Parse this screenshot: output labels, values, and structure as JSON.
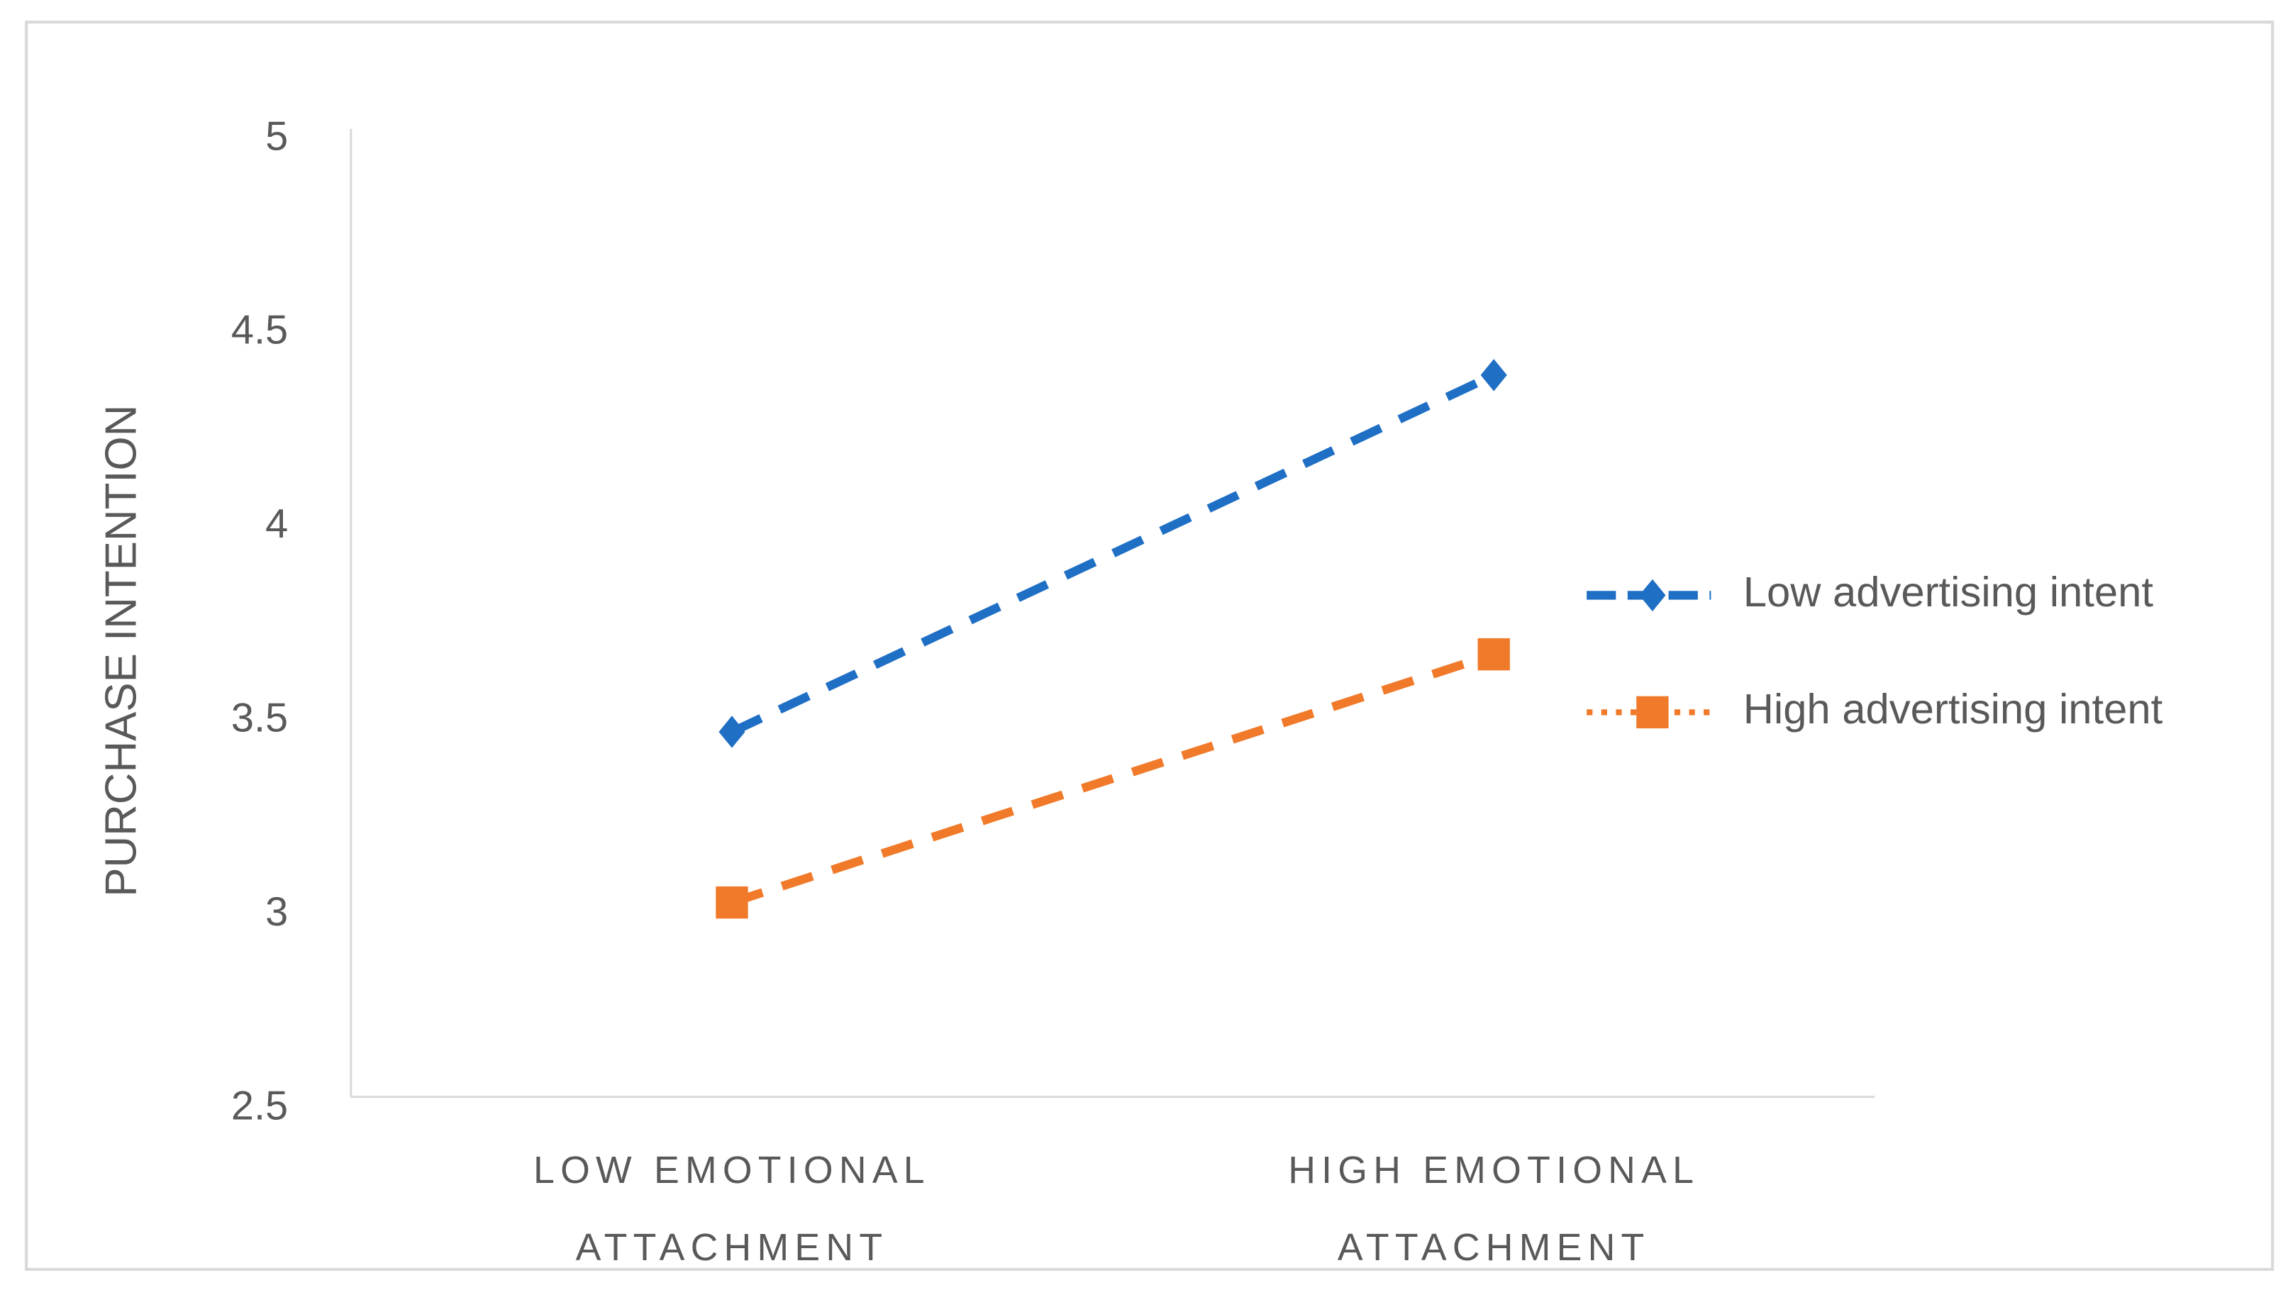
{
  "chart_data": {
    "type": "line",
    "y_label": "PURCHASE INTENTION",
    "categories": [
      "LOW EMOTIONAL ATTACHMENT",
      "HIGH EMOTIONAL ATTACHMENT"
    ],
    "series": [
      {
        "name": "Low advertising intent",
        "color": "#1f6fc5",
        "marker": "diamond",
        "values": [
          3.46,
          4.38
        ]
      },
      {
        "name": "High advertising intent",
        "color": "#f07a2a",
        "marker": "square",
        "values": [
          3.02,
          3.66
        ]
      }
    ],
    "ylim": [
      2.5,
      5
    ],
    "yticks": [
      2.5,
      3,
      3.5,
      4,
      4.5,
      5
    ],
    "grid": false,
    "legend": "right"
  }
}
